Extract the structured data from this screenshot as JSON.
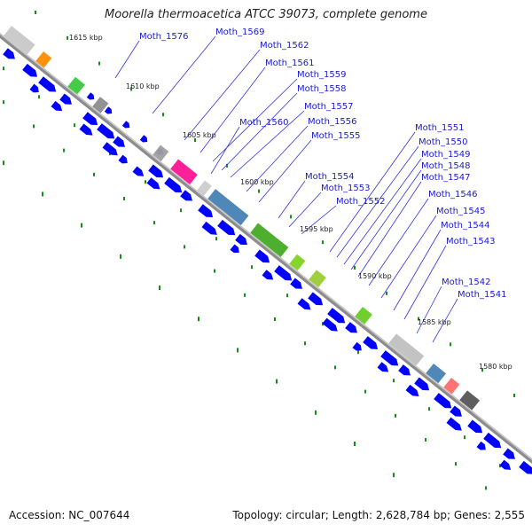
{
  "title": "Moorella thermoacetica ATCC 39073, complete genome",
  "footer": {
    "accession": "Accession: NC_007644",
    "topology": "Topology: circular; Length: 2,628,784 bp; Genes: 2,555"
  },
  "colors": {
    "forward_cds": "#0000ff",
    "backbone": "#8c8c8c",
    "tick": "#1a8a1a",
    "label": "#1a1acc",
    "leader_line": "#3333dd"
  },
  "kbp_ticks": [
    "1615 kbp",
    "1610 kbp",
    "1605 kbp",
    "1600 kbp",
    "1595 kbp",
    "1590 kbp",
    "1585 kbp",
    "1580 kbp"
  ],
  "gene_labels": [
    "Moth_1576",
    "Moth_1569",
    "Moth_1562",
    "Moth_1561",
    "Moth_1559",
    "Moth_1558",
    "Moth_1557",
    "Moth_1560",
    "Moth_1556",
    "Moth_1555",
    "Moth_1554",
    "Moth_1553",
    "Moth_1552",
    "Moth_1551",
    "Moth_1550",
    "Moth_1549",
    "Moth_1548",
    "Moth_1547",
    "Moth_1546",
    "Moth_1545",
    "Moth_1544",
    "Moth_1543",
    "Moth_1542",
    "Moth_1541"
  ]
}
